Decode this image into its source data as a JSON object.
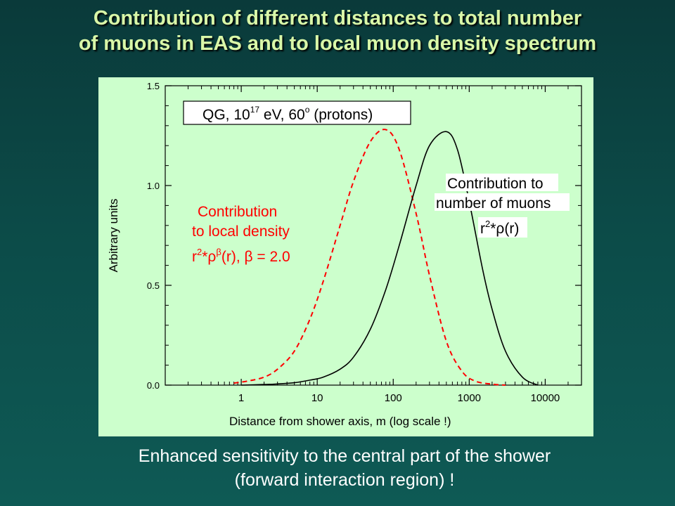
{
  "slide": {
    "title_line1": "Contribution of different distances to total number",
    "title_line2": "of muons in EAS and to local muon density spectrum",
    "caption_line1": "Enhanced sensitivity to the central part of the shower",
    "caption_line2": "(forward interaction region) !"
  },
  "chart_data": {
    "type": "line",
    "x_scale": "log",
    "xlabel": "Distance from shower axis, m (log scale !)",
    "ylabel": "Arbitrary units",
    "xlim": [
      0.1,
      30000
    ],
    "ylim": [
      0.0,
      1.5
    ],
    "xticks": [
      1,
      10,
      100,
      1000,
      10000
    ],
    "xtick_labels": [
      "1",
      "10",
      "100",
      "1000",
      "10000"
    ],
    "yticks": [
      0.0,
      0.5,
      1.0,
      1.5
    ],
    "ytick_labels": [
      "0.0",
      "0.5",
      "1.0",
      "1.5"
    ],
    "grid": false,
    "legend_box": {
      "pre": "QG, 10",
      "exp": "17",
      "mid": " eV, 60",
      "deg": "o",
      "post": " (protons)"
    },
    "series": [
      {
        "name": "Contribution to local density",
        "color": "#ff0000",
        "style": "dashed",
        "x": [
          0.8,
          1.2,
          2,
          3,
          5,
          8,
          12,
          20,
          30,
          50,
          80,
          120,
          200,
          300,
          500,
          800,
          1200,
          2000,
          3000
        ],
        "y": [
          0.01,
          0.02,
          0.04,
          0.08,
          0.17,
          0.33,
          0.52,
          0.8,
          1.02,
          1.22,
          1.28,
          1.18,
          0.86,
          0.55,
          0.22,
          0.07,
          0.02,
          0.005,
          0.0
        ]
      },
      {
        "name": "Contribution to number of muons",
        "color": "#000000",
        "style": "solid",
        "x": [
          1,
          2,
          3,
          5,
          8,
          12,
          20,
          30,
          50,
          80,
          120,
          200,
          300,
          500,
          700,
          1000,
          1500,
          2000,
          3000,
          5000,
          8000
        ],
        "y": [
          0.0,
          0.003,
          0.006,
          0.012,
          0.025,
          0.04,
          0.08,
          0.14,
          0.28,
          0.48,
          0.7,
          1.0,
          1.2,
          1.27,
          1.18,
          0.92,
          0.58,
          0.38,
          0.17,
          0.04,
          0.0
        ]
      }
    ],
    "annotations": {
      "density": {
        "line1": "Contribution",
        "line2": "to local density",
        "formula_pre": "r",
        "formula_sup1": "2",
        "formula_mid": "*ρ",
        "formula_sup2": "β",
        "formula_post": "(r),  β = 2.0",
        "color": "#ff0000"
      },
      "muons": {
        "line1": "Contribution to",
        "line2": "number of muons",
        "formula_pre": "r",
        "formula_sup": "2",
        "formula_post": "*ρ(r)",
        "color": "#000000"
      }
    }
  }
}
